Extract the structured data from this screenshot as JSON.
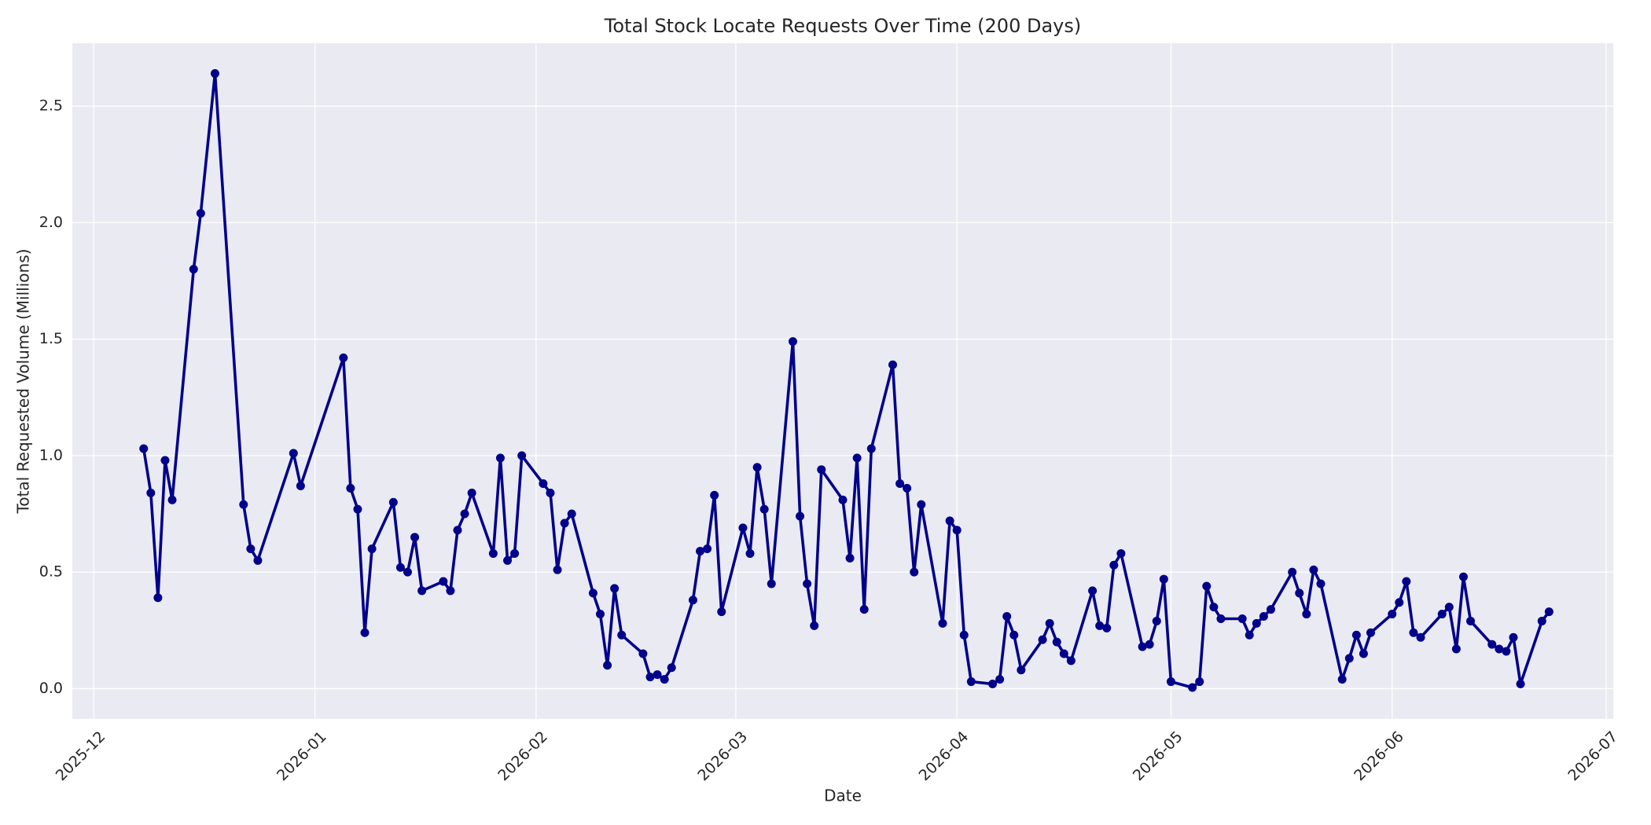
{
  "chart_data": {
    "type": "line",
    "title": "Total Stock Locate Requests Over Time (200 Days)",
    "x_label": "Date",
    "y_label": "Total Requested Volume (Millions)",
    "color": "#00008b",
    "grid": true,
    "x": [
      "2025-12-08",
      "2025-12-09",
      "2025-12-10",
      "2025-12-11",
      "2025-12-12",
      "2025-12-15",
      "2025-12-16",
      "2025-12-18",
      "2025-12-22",
      "2025-12-23",
      "2025-12-24",
      "2025-12-29",
      "2025-12-30",
      "2026-01-05",
      "2026-01-06",
      "2026-01-07",
      "2026-01-08",
      "2026-01-09",
      "2026-01-12",
      "2026-01-13",
      "2026-01-14",
      "2026-01-15",
      "2026-01-16",
      "2026-01-19",
      "2026-01-20",
      "2026-01-21",
      "2026-01-22",
      "2026-01-23",
      "2026-01-26",
      "2026-01-27",
      "2026-01-28",
      "2026-01-29",
      "2026-01-30",
      "2026-02-02",
      "2026-02-03",
      "2026-02-04",
      "2026-02-05",
      "2026-02-06",
      "2026-02-09",
      "2026-02-10",
      "2026-02-11",
      "2026-02-12",
      "2026-02-13",
      "2026-02-16",
      "2026-02-17",
      "2026-02-18",
      "2026-02-19",
      "2026-02-20",
      "2026-02-23",
      "2026-02-24",
      "2026-02-25",
      "2026-02-26",
      "2026-02-27",
      "2026-03-02",
      "2026-03-03",
      "2026-03-04",
      "2026-03-05",
      "2026-03-06",
      "2026-03-09",
      "2026-03-10",
      "2026-03-11",
      "2026-03-12",
      "2026-03-13",
      "2026-03-16",
      "2026-03-17",
      "2026-03-18",
      "2026-03-19",
      "2026-03-20",
      "2026-03-23",
      "2026-03-24",
      "2026-03-25",
      "2026-03-26",
      "2026-03-27",
      "2026-03-30",
      "2026-03-31",
      "2026-04-01",
      "2026-04-02",
      "2026-04-03",
      "2026-04-06",
      "2026-04-07",
      "2026-04-08",
      "2026-04-09",
      "2026-04-10",
      "2026-04-13",
      "2026-04-14",
      "2026-04-15",
      "2026-04-16",
      "2026-04-17",
      "2026-04-20",
      "2026-04-21",
      "2026-04-22",
      "2026-04-23",
      "2026-04-24",
      "2026-04-27",
      "2026-04-28",
      "2026-04-29",
      "2026-04-30",
      "2026-05-01",
      "2026-05-04",
      "2026-05-05",
      "2026-05-06",
      "2026-05-07",
      "2026-05-08",
      "2026-05-11",
      "2026-05-12",
      "2026-05-13",
      "2026-05-14",
      "2026-05-15",
      "2026-05-18",
      "2026-05-19",
      "2026-05-20",
      "2026-05-21",
      "2026-05-22",
      "2026-05-25",
      "2026-05-26",
      "2026-05-27",
      "2026-05-28",
      "2026-05-29",
      "2026-06-01",
      "2026-06-02",
      "2026-06-03",
      "2026-06-04",
      "2026-06-05",
      "2026-06-08",
      "2026-06-09",
      "2026-06-10",
      "2026-06-11",
      "2026-06-12",
      "2026-06-15",
      "2026-06-16",
      "2026-06-17",
      "2026-06-18",
      "2026-06-19",
      "2026-06-22",
      "2026-06-23"
    ],
    "values": [
      1.03,
      0.84,
      0.39,
      0.98,
      0.81,
      1.8,
      2.04,
      2.64,
      0.79,
      0.6,
      0.55,
      1.01,
      0.87,
      1.42,
      0.86,
      0.77,
      0.24,
      0.6,
      0.8,
      0.52,
      0.5,
      0.65,
      0.42,
      0.46,
      0.42,
      0.68,
      0.75,
      0.84,
      0.58,
      0.99,
      0.55,
      0.58,
      1.0,
      0.88,
      0.84,
      0.51,
      0.71,
      0.75,
      0.41,
      0.32,
      0.1,
      0.43,
      0.23,
      0.15,
      0.05,
      0.06,
      0.04,
      0.09,
      0.38,
      0.59,
      0.6,
      0.83,
      0.33,
      0.69,
      0.58,
      0.95,
      0.77,
      0.45,
      1.49,
      0.74,
      0.45,
      0.27,
      0.94,
      0.81,
      0.56,
      0.99,
      0.34,
      1.03,
      1.39,
      0.88,
      0.86,
      0.5,
      0.79,
      0.28,
      0.72,
      0.68,
      0.23,
      0.03,
      0.02,
      0.04,
      0.31,
      0.23,
      0.08,
      0.21,
      0.28,
      0.2,
      0.15,
      0.12,
      0.42,
      0.27,
      0.26,
      0.53,
      0.58,
      0.18,
      0.19,
      0.29,
      0.47,
      0.03,
      0.005,
      0.03,
      0.44,
      0.35,
      0.3,
      0.3,
      0.23,
      0.28,
      0.31,
      0.34,
      0.5,
      0.41,
      0.32,
      0.51,
      0.45,
      0.04,
      0.13,
      0.23,
      0.15,
      0.24,
      0.32,
      0.37,
      0.46,
      0.24,
      0.22,
      0.32,
      0.35,
      0.17,
      0.48,
      0.29,
      0.19,
      0.17,
      0.16,
      0.22,
      0.02,
      0.29,
      0.33
    ],
    "xlim": [
      "2025-11-28",
      "2026-07-02"
    ],
    "xticks": [
      {
        "value": "2025-12-01",
        "label": "2025-12"
      },
      {
        "value": "2026-01-01",
        "label": "2026-01"
      },
      {
        "value": "2026-02-01",
        "label": "2026-02"
      },
      {
        "value": "2026-03-01",
        "label": "2026-03"
      },
      {
        "value": "2026-04-01",
        "label": "2026-04"
      },
      {
        "value": "2026-05-01",
        "label": "2026-05"
      },
      {
        "value": "2026-06-01",
        "label": "2026-06"
      },
      {
        "value": "2026-07-01",
        "label": "2026-07"
      }
    ],
    "ylim": [
      -0.13,
      2.77
    ],
    "yticks": [
      {
        "value": 0,
        "label": "0.0"
      },
      {
        "value": 0.5,
        "label": "0.5"
      },
      {
        "value": 1,
        "label": "1.0"
      },
      {
        "value": 1.5,
        "label": "1.5"
      },
      {
        "value": 2,
        "label": "2.0"
      },
      {
        "value": 2.5,
        "label": "2.5"
      }
    ]
  }
}
